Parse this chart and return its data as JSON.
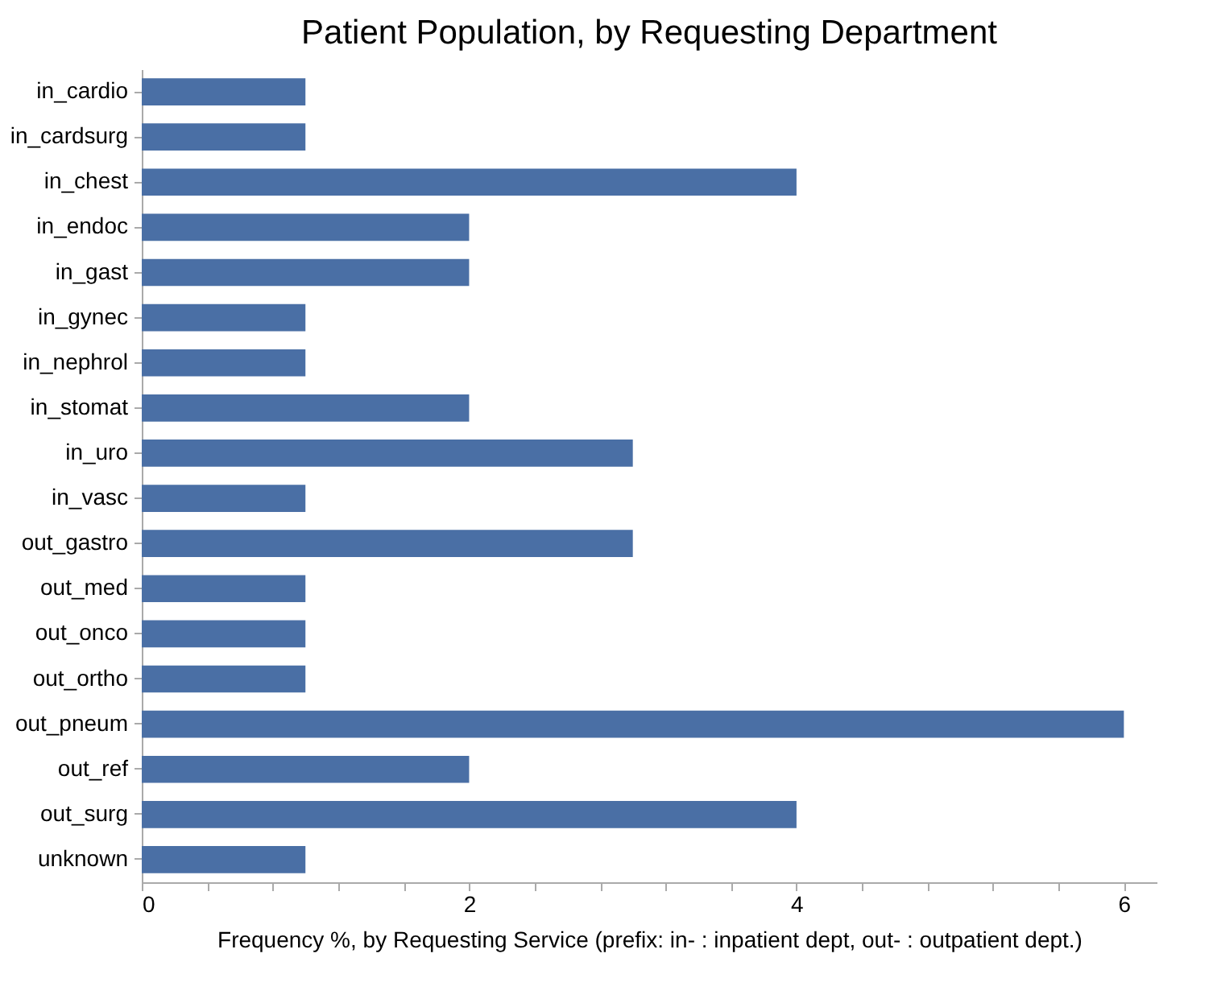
{
  "chart_data": {
    "type": "bar",
    "orientation": "horizontal",
    "title": "Patient Population, by Requesting Department",
    "xlabel": "Frequency %, by Requesting Service (prefix: in- : inpatient dept, out- : outpatient dept.)",
    "categories": [
      "in_cardio",
      "in_cardsurg",
      "in_chest",
      "in_endoc",
      "in_gast",
      "in_gynec",
      "in_nephrol",
      "in_stomat",
      "in_uro",
      "in_vasc",
      "out_gastro",
      "out_med",
      "out_onco",
      "out_ortho",
      "out_pneum",
      "out_ref",
      "out_surg",
      "unknown"
    ],
    "values": [
      1,
      1,
      4,
      2,
      2,
      1,
      1,
      2,
      3,
      1,
      3,
      1,
      1,
      1,
      6,
      2,
      4,
      1
    ],
    "color": "#4a6fa5",
    "xlim": [
      0,
      6.2
    ],
    "xticks": [
      0,
      {
        "value": 0.4,
        "label": null
      },
      {
        "value": 0.8,
        "label": null
      },
      {
        "value": 1.2,
        "label": null
      },
      {
        "value": 1.6,
        "label": null
      },
      2,
      {
        "value": 2.4,
        "label": null
      },
      {
        "value": 2.8,
        "label": null
      },
      {
        "value": 3.2,
        "label": null
      },
      {
        "value": 3.6,
        "label": null
      },
      4,
      {
        "value": 4.4,
        "label": null
      },
      {
        "value": 4.8,
        "label": null
      },
      {
        "value": 5.2,
        "label": null
      },
      {
        "value": 5.6,
        "label": null
      },
      6
    ],
    "grid": false
  }
}
